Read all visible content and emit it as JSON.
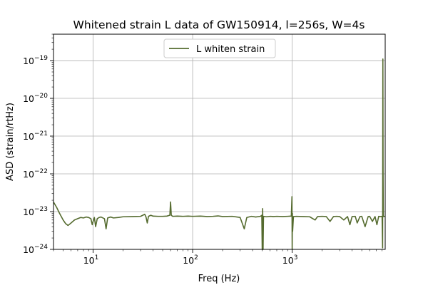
{
  "chart_data": {
    "type": "line",
    "title": "Whitened strain L data of GW150914, l=256s, W=4s",
    "xlabel": "Freq (Hz)",
    "ylabel": "ASD (strain/rtHz)",
    "xscale": "log",
    "yscale": "log",
    "xlim": [
      4,
      8600
    ],
    "ylim": [
      1e-24,
      5e-19
    ],
    "grid": true,
    "legend": {
      "placement": "upper-center"
    },
    "x_ticks": [
      {
        "base": "10",
        "exp": "1",
        "value": 10
      },
      {
        "base": "10",
        "exp": "2",
        "value": 100
      },
      {
        "base": "10",
        "exp": "3",
        "value": 1000
      }
    ],
    "y_ticks": [
      {
        "base": "10",
        "exp": "−24",
        "value": 1e-24
      },
      {
        "base": "10",
        "exp": "−23",
        "value": 1e-23
      },
      {
        "base": "10",
        "exp": "−22",
        "value": 1e-22
      },
      {
        "base": "10",
        "exp": "−21",
        "value": 1e-21
      },
      {
        "base": "10",
        "exp": "−20",
        "value": 1e-20
      },
      {
        "base": "10",
        "exp": "−19",
        "value": 1e-19
      }
    ],
    "series": [
      {
        "name": "L whiten strain",
        "color": "#556b2f",
        "points": [
          [
            4.0,
            1.8e-23
          ],
          [
            4.3,
            1.3e-23
          ],
          [
            4.6,
            9e-24
          ],
          [
            5.0,
            6e-24
          ],
          [
            5.3,
            4.8e-24
          ],
          [
            5.6,
            4.3e-24
          ],
          [
            6.0,
            5e-24
          ],
          [
            6.5,
            6e-24
          ],
          [
            7.0,
            6.5e-24
          ],
          [
            7.5,
            7e-24
          ],
          [
            8.0,
            6.8e-24
          ],
          [
            8.5,
            7.2e-24
          ],
          [
            9.0,
            7e-24
          ],
          [
            9.5,
            6.5e-24
          ],
          [
            9.8,
            4.5e-24
          ],
          [
            10.0,
            5.5e-24
          ],
          [
            10.3,
            7e-24
          ],
          [
            10.6,
            4e-24
          ],
          [
            11.0,
            6.5e-24
          ],
          [
            11.5,
            7e-24
          ],
          [
            12.0,
            7.2e-24
          ],
          [
            13.0,
            6.5e-24
          ],
          [
            13.5,
            3.5e-24
          ],
          [
            14.0,
            6.8e-24
          ],
          [
            15.0,
            7.2e-24
          ],
          [
            16.0,
            6.8e-24
          ],
          [
            18.0,
            7e-24
          ],
          [
            20.0,
            7.3e-24
          ],
          [
            25.0,
            7.4e-24
          ],
          [
            30.0,
            7.5e-24
          ],
          [
            33.0,
            8.5e-24
          ],
          [
            34.0,
            7.2e-24
          ],
          [
            35.0,
            5e-24
          ],
          [
            36.0,
            7.5e-24
          ],
          [
            38.0,
            8e-24
          ],
          [
            40.0,
            7.6e-24
          ],
          [
            45.0,
            7.5e-24
          ],
          [
            50.0,
            7.5e-24
          ],
          [
            55.0,
            7.6e-24
          ],
          [
            59.0,
            8e-24
          ],
          [
            60.0,
            1.8e-23
          ],
          [
            61.0,
            8e-24
          ],
          [
            63.0,
            7.5e-24
          ],
          [
            70.0,
            7.6e-24
          ],
          [
            80.0,
            7.5e-24
          ],
          [
            90.0,
            7.6e-24
          ],
          [
            100.0,
            7.5e-24
          ],
          [
            120.0,
            7.6e-24
          ],
          [
            140.0,
            7.4e-24
          ],
          [
            160.0,
            7.5e-24
          ],
          [
            180.0,
            7.7e-24
          ],
          [
            200.0,
            7.4e-24
          ],
          [
            250.0,
            7.5e-24
          ],
          [
            300.0,
            7e-24
          ],
          [
            330.0,
            3.5e-24
          ],
          [
            350.0,
            7e-24
          ],
          [
            390.0,
            7.5e-24
          ],
          [
            430.0,
            7.2e-24
          ],
          [
            480.0,
            7.5e-24
          ],
          [
            495.0,
            8e-24
          ],
          [
            500.0,
            1e-24
          ],
          [
            505.0,
            1.2e-23
          ],
          [
            510.0,
            1e-24
          ],
          [
            515.0,
            7.5e-24
          ],
          [
            550.0,
            7.3e-24
          ],
          [
            600.0,
            7.5e-24
          ],
          [
            650.0,
            7.4e-24
          ],
          [
            700.0,
            7.5e-24
          ],
          [
            800.0,
            7.4e-24
          ],
          [
            900.0,
            7.5e-24
          ],
          [
            980.0,
            7.6e-24
          ],
          [
            995.0,
            2.5e-23
          ],
          [
            1000.0,
            1e-24
          ],
          [
            1005.0,
            9e-24
          ],
          [
            1010.0,
            3e-24
          ],
          [
            1030.0,
            7.4e-24
          ],
          [
            1100.0,
            7.5e-24
          ],
          [
            1300.0,
            7.4e-24
          ],
          [
            1500.0,
            7.3e-24
          ],
          [
            1700.0,
            6e-24
          ],
          [
            1800.0,
            7.4e-24
          ],
          [
            2000.0,
            7.5e-24
          ],
          [
            2200.0,
            7.4e-24
          ],
          [
            2400.0,
            5.5e-24
          ],
          [
            2600.0,
            7.4e-24
          ],
          [
            2800.0,
            7.5e-24
          ],
          [
            3000.0,
            7.4e-24
          ],
          [
            3300.0,
            6e-24
          ],
          [
            3600.0,
            7.4e-24
          ],
          [
            3800.0,
            4.5e-24
          ],
          [
            4000.0,
            7.4e-24
          ],
          [
            4300.0,
            7.5e-24
          ],
          [
            4500.0,
            5e-24
          ],
          [
            4800.0,
            7.4e-24
          ],
          [
            5000.0,
            7.5e-24
          ],
          [
            5400.0,
            4e-24
          ],
          [
            5800.0,
            7.4e-24
          ],
          [
            6000.0,
            7.5e-24
          ],
          [
            6400.0,
            5.5e-24
          ],
          [
            6800.0,
            7.4e-24
          ],
          [
            7100.0,
            4.5e-24
          ],
          [
            7400.0,
            7.5e-24
          ],
          [
            7700.0,
            7.4e-24
          ],
          [
            8000.0,
            7.5e-24
          ],
          [
            8100.0,
            1.1e-24
          ],
          [
            8150.0,
            1.1e-19
          ],
          [
            8190.0,
            1.2e-22
          ],
          [
            8230.0,
            7.5e-24
          ],
          [
            8300.0,
            7.4e-24
          ],
          [
            8400.0,
            7.5e-24
          ],
          [
            8500.0,
            7.4e-24
          ]
        ]
      }
    ]
  }
}
